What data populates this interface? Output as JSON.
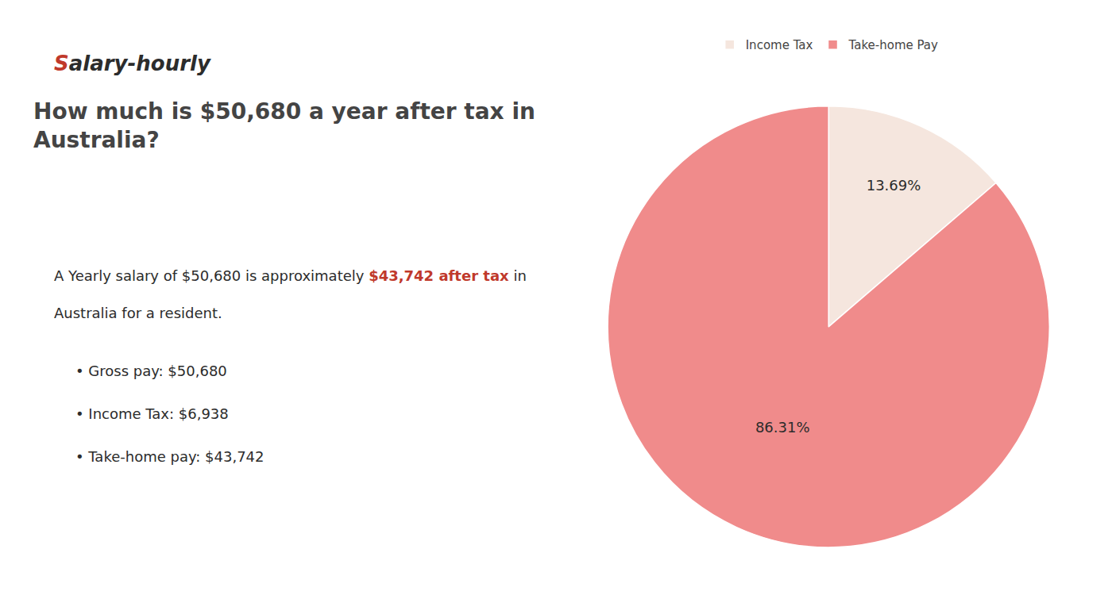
{
  "chart_data": {
    "type": "pie",
    "title": "How much is $50,680 a year after tax in Australia?",
    "categories": [
      "Income Tax",
      "Take-home Pay"
    ],
    "values": [
      13.69,
      86.31
    ],
    "value_labels": [
      "13.69%",
      "86.31%"
    ],
    "colors": [
      "#f5e6de",
      "#f08b8b"
    ],
    "data_labels": true,
    "legend": "top",
    "annotations": [
      [
        {
          "text": "S",
          "color": "#c0392b"
        },
        {
          "text": "alary-hourly"
        }
      ],
      [
        {
          "text": "A Yearly salary of $50,680 is approximately "
        },
        {
          "text": "$43,742 after tax",
          "color": "#c0392b"
        },
        {
          "text": " in"
        }
      ],
      [
        {
          "text": "Australia for a resident."
        }
      ],
      [
        {
          "text": "• Gross pay: $50,680"
        }
      ],
      [
        {
          "text": "• Income Tax: $6,938"
        }
      ],
      [
        {
          "text": "• Take-home pay: $43,742"
        }
      ]
    ]
  }
}
